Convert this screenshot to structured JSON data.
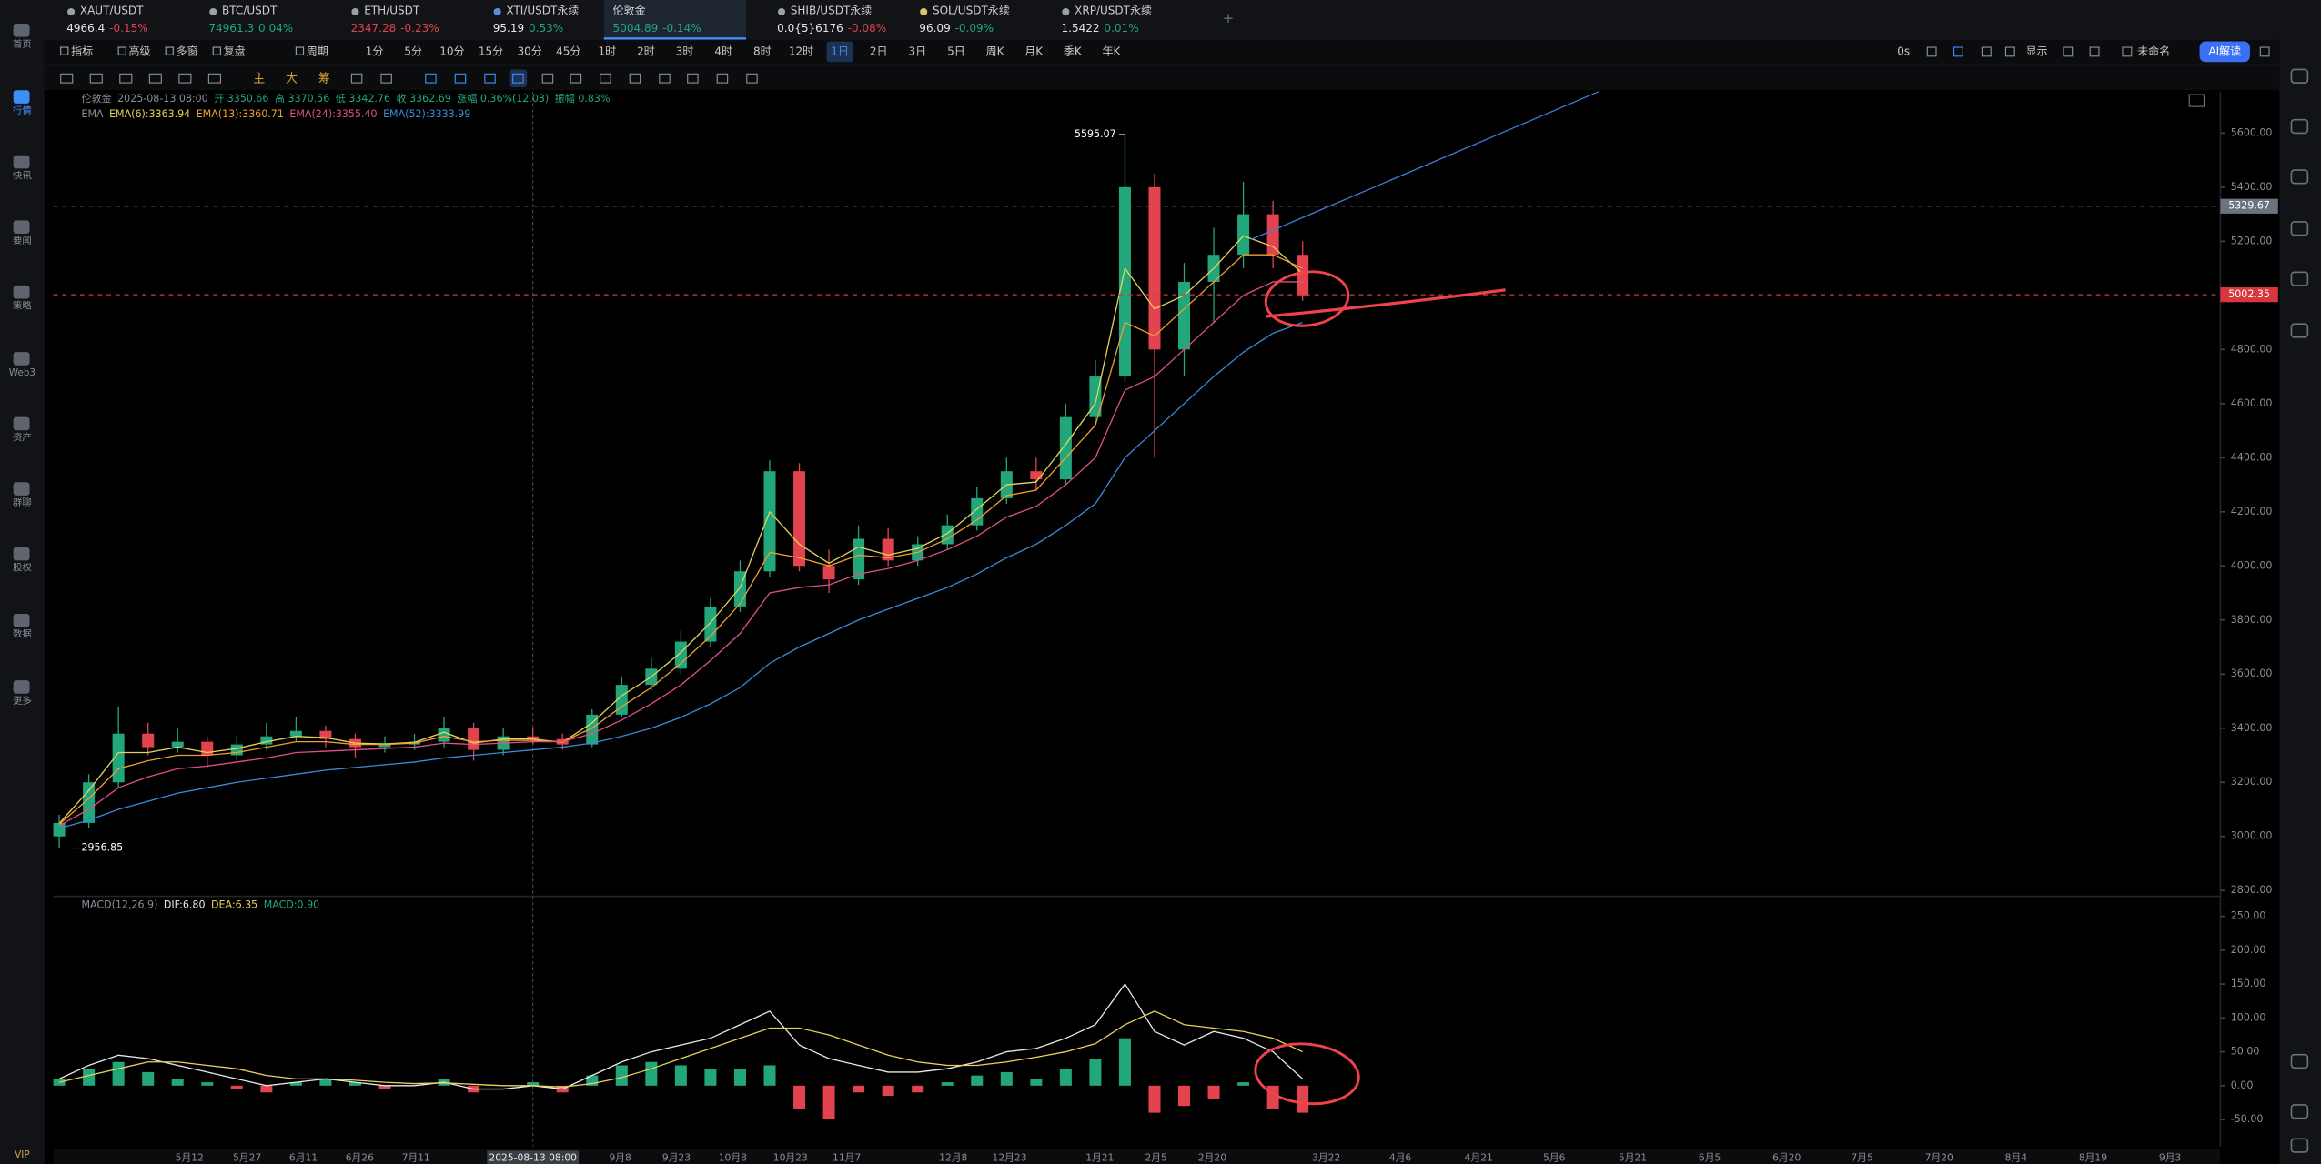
{
  "sidebar": [
    "首页",
    "行情",
    "快讯",
    "要闻",
    "策略",
    "Web3",
    "资产",
    "群聊",
    "股权",
    "数据",
    "更多"
  ],
  "vip": "VIP",
  "tabs": [
    {
      "name": "XAUT/USDT",
      "price": "4966.4",
      "change": "-0.15%"
    },
    {
      "name": "BTC/USDT",
      "price": "74961.3",
      "change": "0.04%"
    },
    {
      "name": "ETH/USDT",
      "price": "2347.28",
      "change": "-0.23%"
    },
    {
      "name": "XTI/USDT永续",
      "price": "95.19",
      "change": "0.53%"
    },
    {
      "name": "伦敦金",
      "price": "5004.89",
      "change": "-0.14%"
    },
    {
      "name": "SHIB/USDT永续",
      "price": "0.0{5}6176",
      "change": "-0.08%"
    },
    {
      "name": "SOL/USDT永续",
      "price": "96.09",
      "change": "-0.09%"
    },
    {
      "name": "XRP/USDT永续",
      "price": "1.5422",
      "change": "0.01%"
    }
  ],
  "toolbar": {
    "left": [
      "指标",
      "高级",
      "多窗",
      "复盘",
      "周期"
    ],
    "periods": [
      "1分",
      "5分",
      "10分",
      "15分",
      "30分",
      "45分",
      "1时",
      "2时",
      "3时",
      "4时",
      "8时",
      "12时",
      "1日",
      "2日",
      "3日",
      "5日",
      "周K",
      "月K",
      "季K",
      "年K"
    ],
    "active": "1日",
    "right": [
      "0s",
      "显示",
      "未命名",
      "AI解读"
    ]
  },
  "draw_tools": [
    "主",
    "大",
    "筹"
  ],
  "info": [
    "伦敦金",
    "2025-08-13 08:00",
    "开 3350.66",
    "高 3370.56",
    "低 3342.76",
    "收 3362.69",
    "涨幅 0.36%(12.03)",
    "振幅 0.83%"
  ],
  "chart_data": [
    {
      "type": "candlestick",
      "indicator": "EMA",
      "ylim": [
        2784,
        5753
      ],
      "yticks": [
        {
          "value": 2800,
          "label": "2800.00"
        },
        {
          "value": 3000,
          "label": "3000.00"
        },
        {
          "value": 3200,
          "label": "3200.00"
        },
        {
          "value": 3400,
          "label": "3400.00"
        },
        {
          "value": 3600,
          "label": "3600.00"
        },
        {
          "value": 3800,
          "label": "3800.00"
        },
        {
          "value": 4000,
          "label": "4000.00"
        },
        {
          "value": 4200,
          "label": "4200.00"
        },
        {
          "value": 4400,
          "label": "4400.00"
        },
        {
          "value": 4600,
          "label": "4600.00"
        },
        {
          "value": 4800,
          "label": "4800.00"
        },
        {
          "value": 5000,
          "label": "5000.00"
        },
        {
          "value": 5200,
          "label": "5200.00"
        },
        {
          "value": 5400,
          "label": "5400.00"
        },
        {
          "value": 5600,
          "label": "5600.00"
        }
      ],
      "up_color": "#22a67c",
      "down_color": "#e2434f",
      "candles": [
        [
          3000,
          3080,
          2956.85,
          3050
        ],
        [
          3050,
          3230,
          3030,
          3200
        ],
        [
          3200,
          3480,
          3180,
          3380
        ],
        [
          3380,
          3420,
          3300,
          3330
        ],
        [
          3330,
          3400,
          3310,
          3350
        ],
        [
          3350,
          3370,
          3250,
          3300
        ],
        [
          3300,
          3370,
          3280,
          3340
        ],
        [
          3340,
          3420,
          3320,
          3370
        ],
        [
          3370,
          3440,
          3350,
          3390
        ],
        [
          3390,
          3410,
          3330,
          3360
        ],
        [
          3360,
          3380,
          3290,
          3330
        ],
        [
          3330,
          3370,
          3310,
          3340
        ],
        [
          3340,
          3380,
          3320,
          3350
        ],
        [
          3350,
          3440,
          3330,
          3400
        ],
        [
          3400,
          3420,
          3280,
          3320
        ],
        [
          3320,
          3400,
          3300,
          3370
        ],
        [
          3370,
          3400,
          3340,
          3360
        ],
        [
          3360,
          3380,
          3320,
          3340
        ],
        [
          3340,
          3470,
          3330,
          3450
        ],
        [
          3450,
          3590,
          3440,
          3560
        ],
        [
          3560,
          3660,
          3540,
          3620
        ],
        [
          3620,
          3760,
          3600,
          3720
        ],
        [
          3720,
          3880,
          3700,
          3850
        ],
        [
          3850,
          4020,
          3830,
          3980
        ],
        [
          3980,
          4390,
          3960,
          4350
        ],
        [
          4350,
          4380,
          3980,
          4000
        ],
        [
          4000,
          4060,
          3900,
          3950
        ],
        [
          3950,
          4150,
          3930,
          4100
        ],
        [
          4100,
          4140,
          4000,
          4020
        ],
        [
          4020,
          4110,
          4000,
          4080
        ],
        [
          4080,
          4190,
          4060,
          4150
        ],
        [
          4150,
          4290,
          4130,
          4250
        ],
        [
          4250,
          4400,
          4230,
          4350
        ],
        [
          4350,
          4400,
          4280,
          4320
        ],
        [
          4320,
          4600,
          4300,
          4550
        ],
        [
          4550,
          4760,
          4520,
          4700
        ],
        [
          4700,
          5595.07,
          4680,
          5400
        ],
        [
          5400,
          5450,
          4400,
          4800
        ],
        [
          4800,
          5120,
          4700,
          5050
        ],
        [
          5050,
          5250,
          4900,
          5150
        ],
        [
          5150,
          5420,
          5100,
          5300
        ],
        [
          5300,
          5350,
          5100,
          5150
        ],
        [
          5150,
          5200,
          4980,
          5000
        ]
      ],
      "series": [
        {
          "name": "EMA(6):3363.94",
          "color": "#e6d35a",
          "values": [
            3048,
            3170,
            3310,
            3310,
            3330,
            3310,
            3325,
            3350,
            3370,
            3365,
            3345,
            3342,
            3348,
            3385,
            3345,
            3360,
            3360,
            3348,
            3420,
            3520,
            3590,
            3680,
            3790,
            3920,
            4200,
            4080,
            4010,
            4070,
            4040,
            4065,
            4120,
            4210,
            4300,
            4310,
            4450,
            4600,
            5100,
            4950,
            5000,
            5100,
            5220,
            5180,
            5080
          ]
        },
        {
          "name": "EMA(13):3360.71",
          "color": "#f0a030",
          "values": [
            3045,
            3140,
            3250,
            3280,
            3300,
            3300,
            3310,
            3330,
            3350,
            3350,
            3340,
            3340,
            3345,
            3370,
            3350,
            3355,
            3355,
            3350,
            3400,
            3480,
            3550,
            3640,
            3740,
            3860,
            4050,
            4030,
            4000,
            4040,
            4030,
            4050,
            4100,
            4170,
            4260,
            4280,
            4400,
            4520,
            4900,
            4850,
            4950,
            5050,
            5150,
            5150,
            5100
          ]
        },
        {
          "name": "EMA(24):3355.40",
          "color": "#e0508a",
          "values": [
            3040,
            3100,
            3180,
            3220,
            3250,
            3260,
            3275,
            3290,
            3310,
            3315,
            3320,
            3325,
            3330,
            3345,
            3340,
            3345,
            3350,
            3350,
            3380,
            3430,
            3490,
            3560,
            3650,
            3750,
            3900,
            3920,
            3930,
            3970,
            3990,
            4020,
            4060,
            4110,
            4180,
            4220,
            4300,
            4400,
            4650,
            4700,
            4800,
            4900,
            5000,
            5050,
            5050
          ]
        },
        {
          "name": "EMA(52):3333.99",
          "color": "#3b8ad9",
          "values": [
            3030,
            3060,
            3100,
            3130,
            3160,
            3180,
            3200,
            3215,
            3230,
            3245,
            3255,
            3265,
            3275,
            3290,
            3300,
            3310,
            3320,
            3330,
            3345,
            3370,
            3400,
            3440,
            3490,
            3550,
            3640,
            3700,
            3750,
            3800,
            3840,
            3880,
            3920,
            3970,
            4030,
            4080,
            4150,
            4230,
            4400,
            4500,
            4600,
            4700,
            4790,
            4860,
            4900
          ]
        }
      ],
      "high_label": 5595.07,
      "low_label": 2956.85,
      "price_lines": [
        {
          "value": 5329.67,
          "color": "#6b7280"
        },
        {
          "value": 5002.35,
          "color": "#d9363e"
        }
      ]
    },
    {
      "type": "macd",
      "indicator": "MACD(12,26,9)",
      "ylim": [
        -89.5,
        279.5
      ],
      "yticks": [
        {
          "value": -50,
          "label": "-50.00"
        },
        {
          "value": 0,
          "label": "0.00"
        },
        {
          "value": 50,
          "label": "50.00"
        },
        {
          "value": 100,
          "label": "100.00"
        },
        {
          "value": 150,
          "label": "150.00"
        },
        {
          "value": 200,
          "label": "200.00"
        },
        {
          "value": 250,
          "label": "250.00"
        }
      ],
      "histogram": {
        "name": "MACD:0.90",
        "up_color": "#22a67c",
        "down_color": "#e2434f",
        "values": [
          10,
          25,
          35,
          20,
          10,
          5,
          -5,
          -10,
          5,
          10,
          5,
          -5,
          0,
          10,
          -10,
          0,
          5,
          -10,
          15,
          30,
          35,
          30,
          25,
          25,
          30,
          -35,
          -50,
          -10,
          -15,
          -10,
          5,
          15,
          20,
          10,
          25,
          40,
          70,
          -40,
          -30,
          -20,
          5,
          -35,
          -40
        ]
      },
      "series": [
        {
          "name": "DIF:6.80",
          "color": "#e8e8e8",
          "values": [
            10,
            30,
            45,
            40,
            30,
            20,
            10,
            0,
            5,
            10,
            5,
            0,
            0,
            5,
            -5,
            -5,
            0,
            -5,
            15,
            35,
            50,
            60,
            70,
            90,
            110,
            60,
            40,
            30,
            20,
            20,
            25,
            35,
            50,
            55,
            70,
            90,
            150,
            80,
            60,
            80,
            70,
            50,
            10
          ]
        },
        {
          "name": "DEA:6.35",
          "color": "#e6d35a",
          "values": [
            5,
            15,
            25,
            35,
            35,
            30,
            25,
            15,
            10,
            10,
            8,
            5,
            3,
            4,
            2,
            0,
            0,
            -2,
            3,
            12,
            25,
            40,
            55,
            70,
            85,
            85,
            75,
            60,
            45,
            35,
            30,
            30,
            35,
            42,
            50,
            62,
            90,
            110,
            90,
            85,
            80,
            70,
            50
          ]
        }
      ],
      "x_labels": [
        "5月12",
        "5月27",
        "6月11",
        "6月26",
        "7月11",
        "2025-08-13 08:00",
        "9月8",
        "9月23",
        "10月8",
        "10月23",
        "11月7",
        "12月8",
        "12月23",
        "1月21",
        "2月5",
        "2月20",
        "3月22",
        "4月6",
        "4月21",
        "5月6",
        "5月21",
        "6月5",
        "6月20",
        "7月5",
        "7月20",
        "8月4",
        "8月19",
        "9月3"
      ],
      "crosshair_label": "2025-08-13 08:00"
    }
  ]
}
